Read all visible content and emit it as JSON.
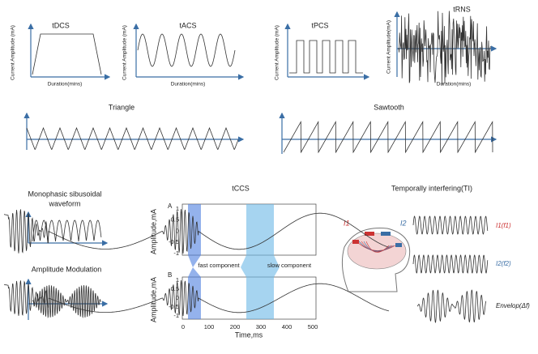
{
  "tdcs": {
    "title": "tDCS",
    "y_label": "Current Amplitude (mA)",
    "x_label": "Duration(mins)"
  },
  "tacs": {
    "title": "tACS",
    "y_label": "Current Amplitude (mA)",
    "x_label": "Duration(mins)"
  },
  "tpcs": {
    "title": "tPCS",
    "y_label": "Current Amplitude (mA)"
  },
  "trns": {
    "title": "tRNS",
    "y_label": "Current Amplitude(mA)",
    "x_label": "Duration(mins)"
  },
  "triangle": {
    "title": "Triangle"
  },
  "sawtooth": {
    "title": "Sawtooth"
  },
  "monophasic": {
    "title_lines": [
      "Monophasic sibusoidal",
      "waveform"
    ]
  },
  "am": {
    "title": "Amplitude Modulation"
  },
  "tccs": {
    "title": "tCCS",
    "panel_a": "A",
    "panel_b": "B",
    "y_label_a": "Amplitude,mA",
    "y_label_b": "Amplitude,mA",
    "x_label": "Time,ms",
    "yticks": [
      1,
      0.5,
      0,
      -0.5,
      -1
    ],
    "xticks": [
      0,
      100,
      200,
      300,
      400,
      500
    ],
    "annotations": [
      "fast component",
      "slow component"
    ]
  },
  "ti": {
    "title": "Temporally interfering(TI)",
    "electrode_1": "I1",
    "electrode_2": "I2",
    "wave_1": "I1(f1)",
    "wave_2": "I2(f2)",
    "envelope": "Envelop(Δf)"
  }
}
